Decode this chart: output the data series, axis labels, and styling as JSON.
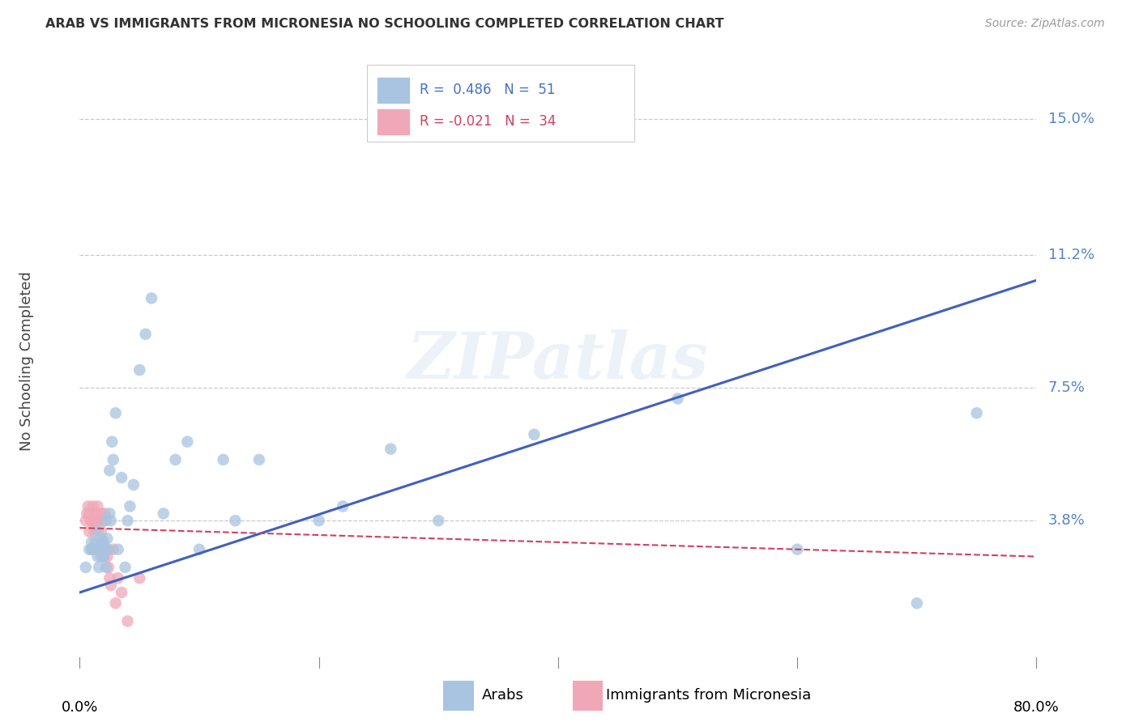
{
  "title": "ARAB VS IMMIGRANTS FROM MICRONESIA NO SCHOOLING COMPLETED CORRELATION CHART",
  "source": "Source: ZipAtlas.com",
  "ylabel": "No Schooling Completed",
  "ytick_labels": [
    "15.0%",
    "11.2%",
    "7.5%",
    "3.8%"
  ],
  "ytick_values": [
    0.15,
    0.112,
    0.075,
    0.038
  ],
  "xlim": [
    0.0,
    0.8
  ],
  "ylim": [
    0.0,
    0.165
  ],
  "legend_text_1": "R =  0.486   N =  51",
  "legend_text_2": "R = -0.021   N =  34",
  "watermark": "ZIPatlas",
  "background_color": "#ffffff",
  "grid_color": "#c8c8d0",
  "blue_color": "#a8c4e0",
  "pink_color": "#f0a8b8",
  "trendline_blue": "#4060c0",
  "trendline_pink": "#d04060",
  "legend_blue_text": "#4472c4",
  "legend_pink_text": "#d04060",
  "right_axis_color": "#5585c5",
  "arab_x": [
    0.005,
    0.008,
    0.01,
    0.01,
    0.012,
    0.013,
    0.015,
    0.015,
    0.016,
    0.017,
    0.018,
    0.018,
    0.019,
    0.02,
    0.02,
    0.021,
    0.022,
    0.022,
    0.023,
    0.024,
    0.025,
    0.025,
    0.026,
    0.027,
    0.028,
    0.03,
    0.032,
    0.035,
    0.038,
    0.04,
    0.042,
    0.045,
    0.05,
    0.055,
    0.06,
    0.07,
    0.08,
    0.09,
    0.1,
    0.12,
    0.13,
    0.15,
    0.2,
    0.22,
    0.26,
    0.3,
    0.38,
    0.5,
    0.6,
    0.7,
    0.75
  ],
  "arab_y": [
    0.025,
    0.03,
    0.032,
    0.03,
    0.03,
    0.032,
    0.028,
    0.035,
    0.025,
    0.03,
    0.033,
    0.028,
    0.03,
    0.032,
    0.028,
    0.03,
    0.025,
    0.038,
    0.033,
    0.03,
    0.052,
    0.04,
    0.038,
    0.06,
    0.055,
    0.068,
    0.03,
    0.05,
    0.025,
    0.038,
    0.042,
    0.048,
    0.08,
    0.09,
    0.1,
    0.04,
    0.055,
    0.06,
    0.03,
    0.055,
    0.038,
    0.055,
    0.038,
    0.042,
    0.058,
    0.038,
    0.062,
    0.072,
    0.03,
    0.015,
    0.068
  ],
  "micro_x": [
    0.005,
    0.006,
    0.007,
    0.008,
    0.008,
    0.009,
    0.01,
    0.01,
    0.011,
    0.012,
    0.012,
    0.013,
    0.014,
    0.015,
    0.015,
    0.016,
    0.017,
    0.018,
    0.018,
    0.019,
    0.02,
    0.02,
    0.021,
    0.022,
    0.023,
    0.024,
    0.025,
    0.026,
    0.028,
    0.03,
    0.032,
    0.035,
    0.04,
    0.05
  ],
  "micro_y": [
    0.038,
    0.04,
    0.042,
    0.035,
    0.04,
    0.038,
    0.03,
    0.038,
    0.042,
    0.035,
    0.038,
    0.04,
    0.038,
    0.04,
    0.042,
    0.03,
    0.038,
    0.035,
    0.04,
    0.032,
    0.038,
    0.028,
    0.04,
    0.03,
    0.028,
    0.025,
    0.022,
    0.02,
    0.03,
    0.015,
    0.022,
    0.018,
    0.01,
    0.022
  ],
  "blue_trendline_x": [
    0.0,
    0.8
  ],
  "blue_trendline_y": [
    0.018,
    0.105
  ],
  "pink_trendline_x": [
    0.0,
    0.8
  ],
  "pink_trendline_y": [
    0.036,
    0.028
  ]
}
